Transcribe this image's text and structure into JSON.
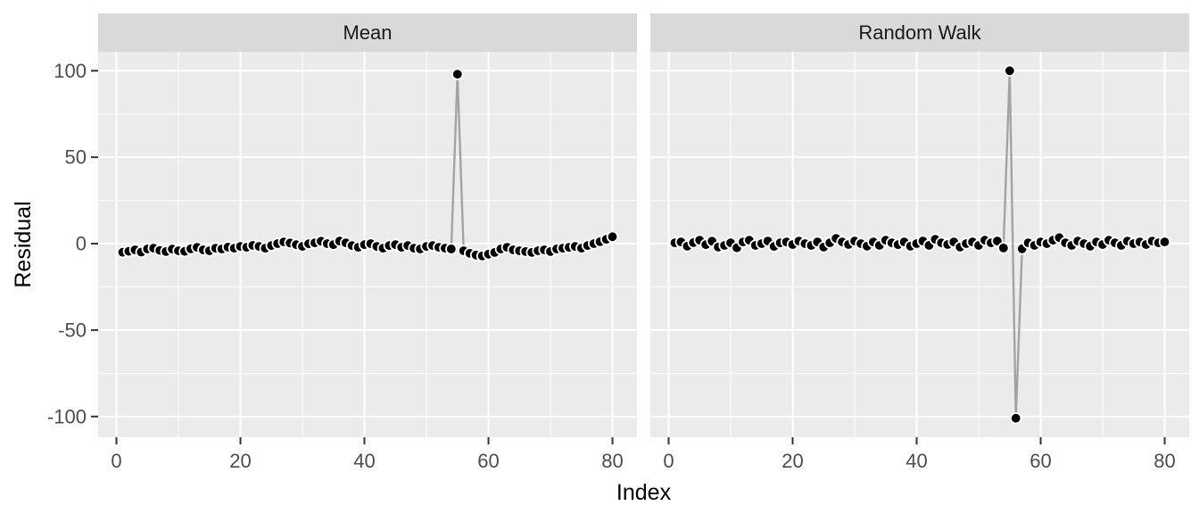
{
  "chart_data": {
    "type": "scatter",
    "title": "",
    "xlabel": "Index",
    "ylabel": "Residual",
    "legend": "none",
    "grid": true,
    "x_ticks": [
      0,
      20,
      40,
      60,
      80
    ],
    "y_ticks": [
      100,
      50,
      0,
      -50,
      -100
    ],
    "x_minor": [
      10,
      30,
      50,
      70
    ],
    "y_minor": [
      75,
      25,
      -25,
      -75
    ],
    "x_domain": [
      -2.95,
      83.95
    ],
    "y_domain": [
      -112,
      111
    ],
    "facets": [
      {
        "label": "Mean",
        "points": [
          [
            1,
            -5.0
          ],
          [
            2,
            -4.4
          ],
          [
            3,
            -3.6
          ],
          [
            4,
            -4.9
          ],
          [
            5,
            -3.1
          ],
          [
            6,
            -2.6
          ],
          [
            7,
            -3.9
          ],
          [
            8,
            -4.6
          ],
          [
            9,
            -3.2
          ],
          [
            10,
            -4.1
          ],
          [
            11,
            -4.5
          ],
          [
            12,
            -3.0
          ],
          [
            13,
            -2.1
          ],
          [
            14,
            -3.6
          ],
          [
            15,
            -4.1
          ],
          [
            16,
            -2.6
          ],
          [
            17,
            -3.1
          ],
          [
            18,
            -2.0
          ],
          [
            19,
            -2.6
          ],
          [
            20,
            -1.6
          ],
          [
            21,
            -2.1
          ],
          [
            22,
            -1.0
          ],
          [
            23,
            -1.6
          ],
          [
            24,
            -2.6
          ],
          [
            25,
            -1.1
          ],
          [
            26,
            0.0
          ],
          [
            27,
            1.0
          ],
          [
            28,
            0.4
          ],
          [
            29,
            -0.6
          ],
          [
            30,
            -1.6
          ],
          [
            31,
            -0.1
          ],
          [
            32,
            0.5
          ],
          [
            33,
            1.4
          ],
          [
            34,
            0.0
          ],
          [
            35,
            -0.6
          ],
          [
            36,
            1.5
          ],
          [
            37,
            0.5
          ],
          [
            38,
            -1.1
          ],
          [
            39,
            -2.1
          ],
          [
            40,
            -0.6
          ],
          [
            41,
            0.0
          ],
          [
            42,
            -1.6
          ],
          [
            43,
            -2.6
          ],
          [
            44,
            -1.1
          ],
          [
            45,
            -0.6
          ],
          [
            46,
            -2.1
          ],
          [
            47,
            -1.1
          ],
          [
            48,
            -2.6
          ],
          [
            49,
            -3.1
          ],
          [
            50,
            -1.6
          ],
          [
            51,
            -1.1
          ],
          [
            52,
            -2.1
          ],
          [
            53,
            -2.6
          ],
          [
            54,
            -3.1
          ],
          [
            55,
            98.0
          ],
          [
            56,
            -4.1
          ],
          [
            57,
            -5.6
          ],
          [
            58,
            -6.6
          ],
          [
            59,
            -7.1
          ],
          [
            60,
            -6.1
          ],
          [
            61,
            -5.1
          ],
          [
            62,
            -3.1
          ],
          [
            63,
            -2.1
          ],
          [
            64,
            -3.6
          ],
          [
            65,
            -4.1
          ],
          [
            66,
            -4.6
          ],
          [
            67,
            -5.1
          ],
          [
            68,
            -4.1
          ],
          [
            69,
            -3.6
          ],
          [
            70,
            -4.6
          ],
          [
            71,
            -3.1
          ],
          [
            72,
            -2.6
          ],
          [
            73,
            -2.1
          ],
          [
            74,
            -1.6
          ],
          [
            75,
            -2.6
          ],
          [
            76,
            -1.1
          ],
          [
            77,
            0.0
          ],
          [
            78,
            1.1
          ],
          [
            79,
            2.5
          ],
          [
            80,
            4.0
          ]
        ]
      },
      {
        "label": "Random Walk",
        "points": [
          [
            1,
            0.5
          ],
          [
            2,
            1.0
          ],
          [
            3,
            -1.5
          ],
          [
            4,
            0.6
          ],
          [
            5,
            2.0
          ],
          [
            6,
            -0.6
          ],
          [
            7,
            1.4
          ],
          [
            8,
            -2.0
          ],
          [
            9,
            -1.0
          ],
          [
            10,
            0.5
          ],
          [
            11,
            -2.4
          ],
          [
            12,
            1.0
          ],
          [
            13,
            2.0
          ],
          [
            14,
            -1.0
          ],
          [
            15,
            0.0
          ],
          [
            16,
            1.5
          ],
          [
            17,
            -1.6
          ],
          [
            18,
            0.5
          ],
          [
            19,
            1.0
          ],
          [
            20,
            -0.5
          ],
          [
            21,
            1.5
          ],
          [
            22,
            0.0
          ],
          [
            23,
            -1.0
          ],
          [
            24,
            1.0
          ],
          [
            25,
            -2.0
          ],
          [
            26,
            0.5
          ],
          [
            27,
            3.0
          ],
          [
            28,
            1.0
          ],
          [
            29,
            -0.5
          ],
          [
            30,
            1.5
          ],
          [
            31,
            0.0
          ],
          [
            32,
            -1.5
          ],
          [
            33,
            1.0
          ],
          [
            34,
            -1.0
          ],
          [
            35,
            2.0
          ],
          [
            36,
            0.5
          ],
          [
            37,
            -0.6
          ],
          [
            38,
            1.0
          ],
          [
            39,
            -1.5
          ],
          [
            40,
            0.0
          ],
          [
            41,
            1.5
          ],
          [
            42,
            -1.0
          ],
          [
            43,
            2.5
          ],
          [
            44,
            0.5
          ],
          [
            45,
            -0.5
          ],
          [
            46,
            1.0
          ],
          [
            47,
            -2.0
          ],
          [
            48,
            0.0
          ],
          [
            49,
            1.0
          ],
          [
            50,
            -1.0
          ],
          [
            51,
            2.0
          ],
          [
            52,
            0.5
          ],
          [
            53,
            1.5
          ],
          [
            54,
            -2.5
          ],
          [
            55,
            100.0
          ],
          [
            56,
            -101.0
          ],
          [
            57,
            -3.0
          ],
          [
            58,
            0.5
          ],
          [
            59,
            -1.0
          ],
          [
            60,
            1.0
          ],
          [
            61,
            0.0
          ],
          [
            62,
            2.0
          ],
          [
            63,
            3.5
          ],
          [
            64,
            0.5
          ],
          [
            65,
            -1.0
          ],
          [
            66,
            1.5
          ],
          [
            67,
            0.0
          ],
          [
            68,
            -1.5
          ],
          [
            69,
            1.0
          ],
          [
            70,
            -0.5
          ],
          [
            71,
            2.0
          ],
          [
            72,
            0.5
          ],
          [
            73,
            -1.0
          ],
          [
            74,
            1.5
          ],
          [
            75,
            0.0
          ],
          [
            76,
            1.0
          ],
          [
            77,
            -0.5
          ],
          [
            78,
            1.5
          ],
          [
            79,
            0.5
          ],
          [
            80,
            1.0
          ]
        ]
      }
    ],
    "style": {
      "background": "#FFFFFF",
      "panel_bg": "#EBEBEB",
      "strip_bg": "#D9D9D9",
      "grid_color": "#FFFFFF",
      "line_color": "#A3A3A3",
      "point_fill": "#000000",
      "point_stroke": "#FFFFFF",
      "tick_label_color": "#4D4D4D",
      "axis_title_color": "#000000",
      "strip_text_color": "#1A1A1A",
      "tick_mark_color": "#333333"
    }
  }
}
